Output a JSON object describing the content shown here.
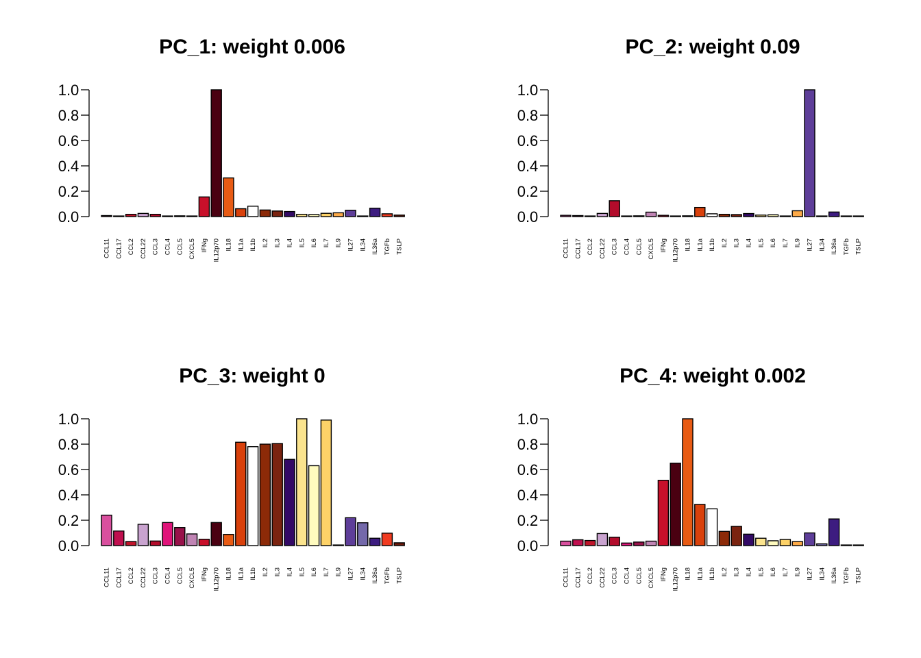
{
  "chart_data": [
    {
      "type": "bar",
      "title": "PC_1: weight 0.006",
      "ylim": [
        0,
        1
      ],
      "yticks": [
        "0.0",
        "0.2",
        "0.4",
        "0.6",
        "0.8",
        "1.0"
      ],
      "categories": [
        "CCL11",
        "CCL17",
        "CCL2",
        "CCL22",
        "CCL3",
        "CCL4",
        "CCL5",
        "CXCL5",
        "IFNg",
        "IL12p70",
        "IL18",
        "IL1a",
        "IL1b",
        "IL2",
        "IL3",
        "IL4",
        "IL5",
        "IL6",
        "IL7",
        "IL9",
        "IL27",
        "IL34",
        "IL36a",
        "TGFb",
        "TSLP"
      ],
      "values": [
        0.008,
        0.004,
        0.018,
        0.025,
        0.018,
        0.004,
        0.006,
        0.003,
        0.155,
        1.0,
        0.305,
        0.062,
        0.082,
        0.052,
        0.044,
        0.04,
        0.018,
        0.016,
        0.026,
        0.03,
        0.05,
        0.004,
        0.066,
        0.022,
        0.012
      ]
    },
    {
      "type": "bar",
      "title": "PC_2: weight 0.09",
      "ylim": [
        0,
        1
      ],
      "yticks": [
        "0.0",
        "0.2",
        "0.4",
        "0.6",
        "0.8",
        "1.0"
      ],
      "categories": [
        "CCL11",
        "CCL17",
        "CCL2",
        "CCL22",
        "CCL3",
        "CCL4",
        "CCL5",
        "CXCL5",
        "IFNg",
        "IL12p70",
        "IL18",
        "IL1a",
        "IL1b",
        "IL2",
        "IL3",
        "IL4",
        "IL5",
        "IL6",
        "IL7",
        "IL9",
        "IL27",
        "IL34",
        "IL36a",
        "TGFb",
        "TSLP"
      ],
      "values": [
        0.01,
        0.008,
        0.004,
        0.025,
        0.125,
        0.003,
        0.006,
        0.035,
        0.01,
        0.004,
        0.006,
        0.072,
        0.022,
        0.018,
        0.016,
        0.024,
        0.012,
        0.014,
        0.004,
        0.046,
        1.0,
        0.004,
        0.036,
        0.004,
        0.004
      ]
    },
    {
      "type": "bar",
      "title": "PC_3: weight 0",
      "ylim": [
        0,
        1
      ],
      "yticks": [
        "0.0",
        "0.2",
        "0.4",
        "0.6",
        "0.8",
        "1.0"
      ],
      "categories": [
        "CCL11",
        "CCL17",
        "CCL2",
        "CCL22",
        "CCL3",
        "CCL4",
        "CCL5",
        "CXCL5",
        "IFNg",
        "IL12p70",
        "IL18",
        "IL1a",
        "IL1b",
        "IL2",
        "IL3",
        "IL4",
        "IL5",
        "IL6",
        "IL7",
        "IL9",
        "IL27",
        "IL34",
        "IL36a",
        "TGFb",
        "TSLP"
      ],
      "values": [
        0.24,
        0.115,
        0.032,
        0.168,
        0.036,
        0.182,
        0.142,
        0.092,
        0.05,
        0.182,
        0.088,
        0.815,
        0.78,
        0.8,
        0.805,
        0.68,
        1.0,
        0.63,
        0.99,
        0.003,
        0.22,
        0.18,
        0.058,
        0.098,
        0.022
      ]
    },
    {
      "type": "bar",
      "title": "PC_4: weight 0.002",
      "ylim": [
        0,
        1
      ],
      "yticks": [
        "0.0",
        "0.2",
        "0.4",
        "0.6",
        "0.8",
        "1.0"
      ],
      "categories": [
        "CCL11",
        "CCL17",
        "CCL2",
        "CCL22",
        "CCL3",
        "CCL4",
        "CCL5",
        "CXCL5",
        "IFNg",
        "IL12p70",
        "IL18",
        "IL1a",
        "IL1b",
        "IL2",
        "IL3",
        "IL4",
        "IL5",
        "IL6",
        "IL7",
        "IL9",
        "IL27",
        "IL34",
        "IL36a",
        "TGFb",
        "TSLP"
      ],
      "values": [
        0.035,
        0.046,
        0.04,
        0.095,
        0.066,
        0.02,
        0.028,
        0.035,
        0.515,
        0.65,
        1.0,
        0.325,
        0.29,
        0.112,
        0.152,
        0.09,
        0.058,
        0.038,
        0.048,
        0.032,
        0.1,
        0.014,
        0.21,
        0.004,
        0.002
      ]
    }
  ],
  "bar_colors": [
    "#D94F9E",
    "#C0104F",
    "#C0152B",
    "#C9A3CF",
    "#B30C2B",
    "#E0147A",
    "#98124A",
    "#C084B4",
    "#C8102A",
    "#4A0011",
    "#E85B14",
    "#D9410C",
    "#FFFFFF",
    "#8C2A08",
    "#7A2310",
    "#330A66",
    "#FBE48E",
    "#FFFBBF",
    "#FDD268",
    "#FDAA48",
    "#5E3E99",
    "#7469AA",
    "#3D1C80",
    "#F03B20",
    "#6E1A0D"
  ]
}
